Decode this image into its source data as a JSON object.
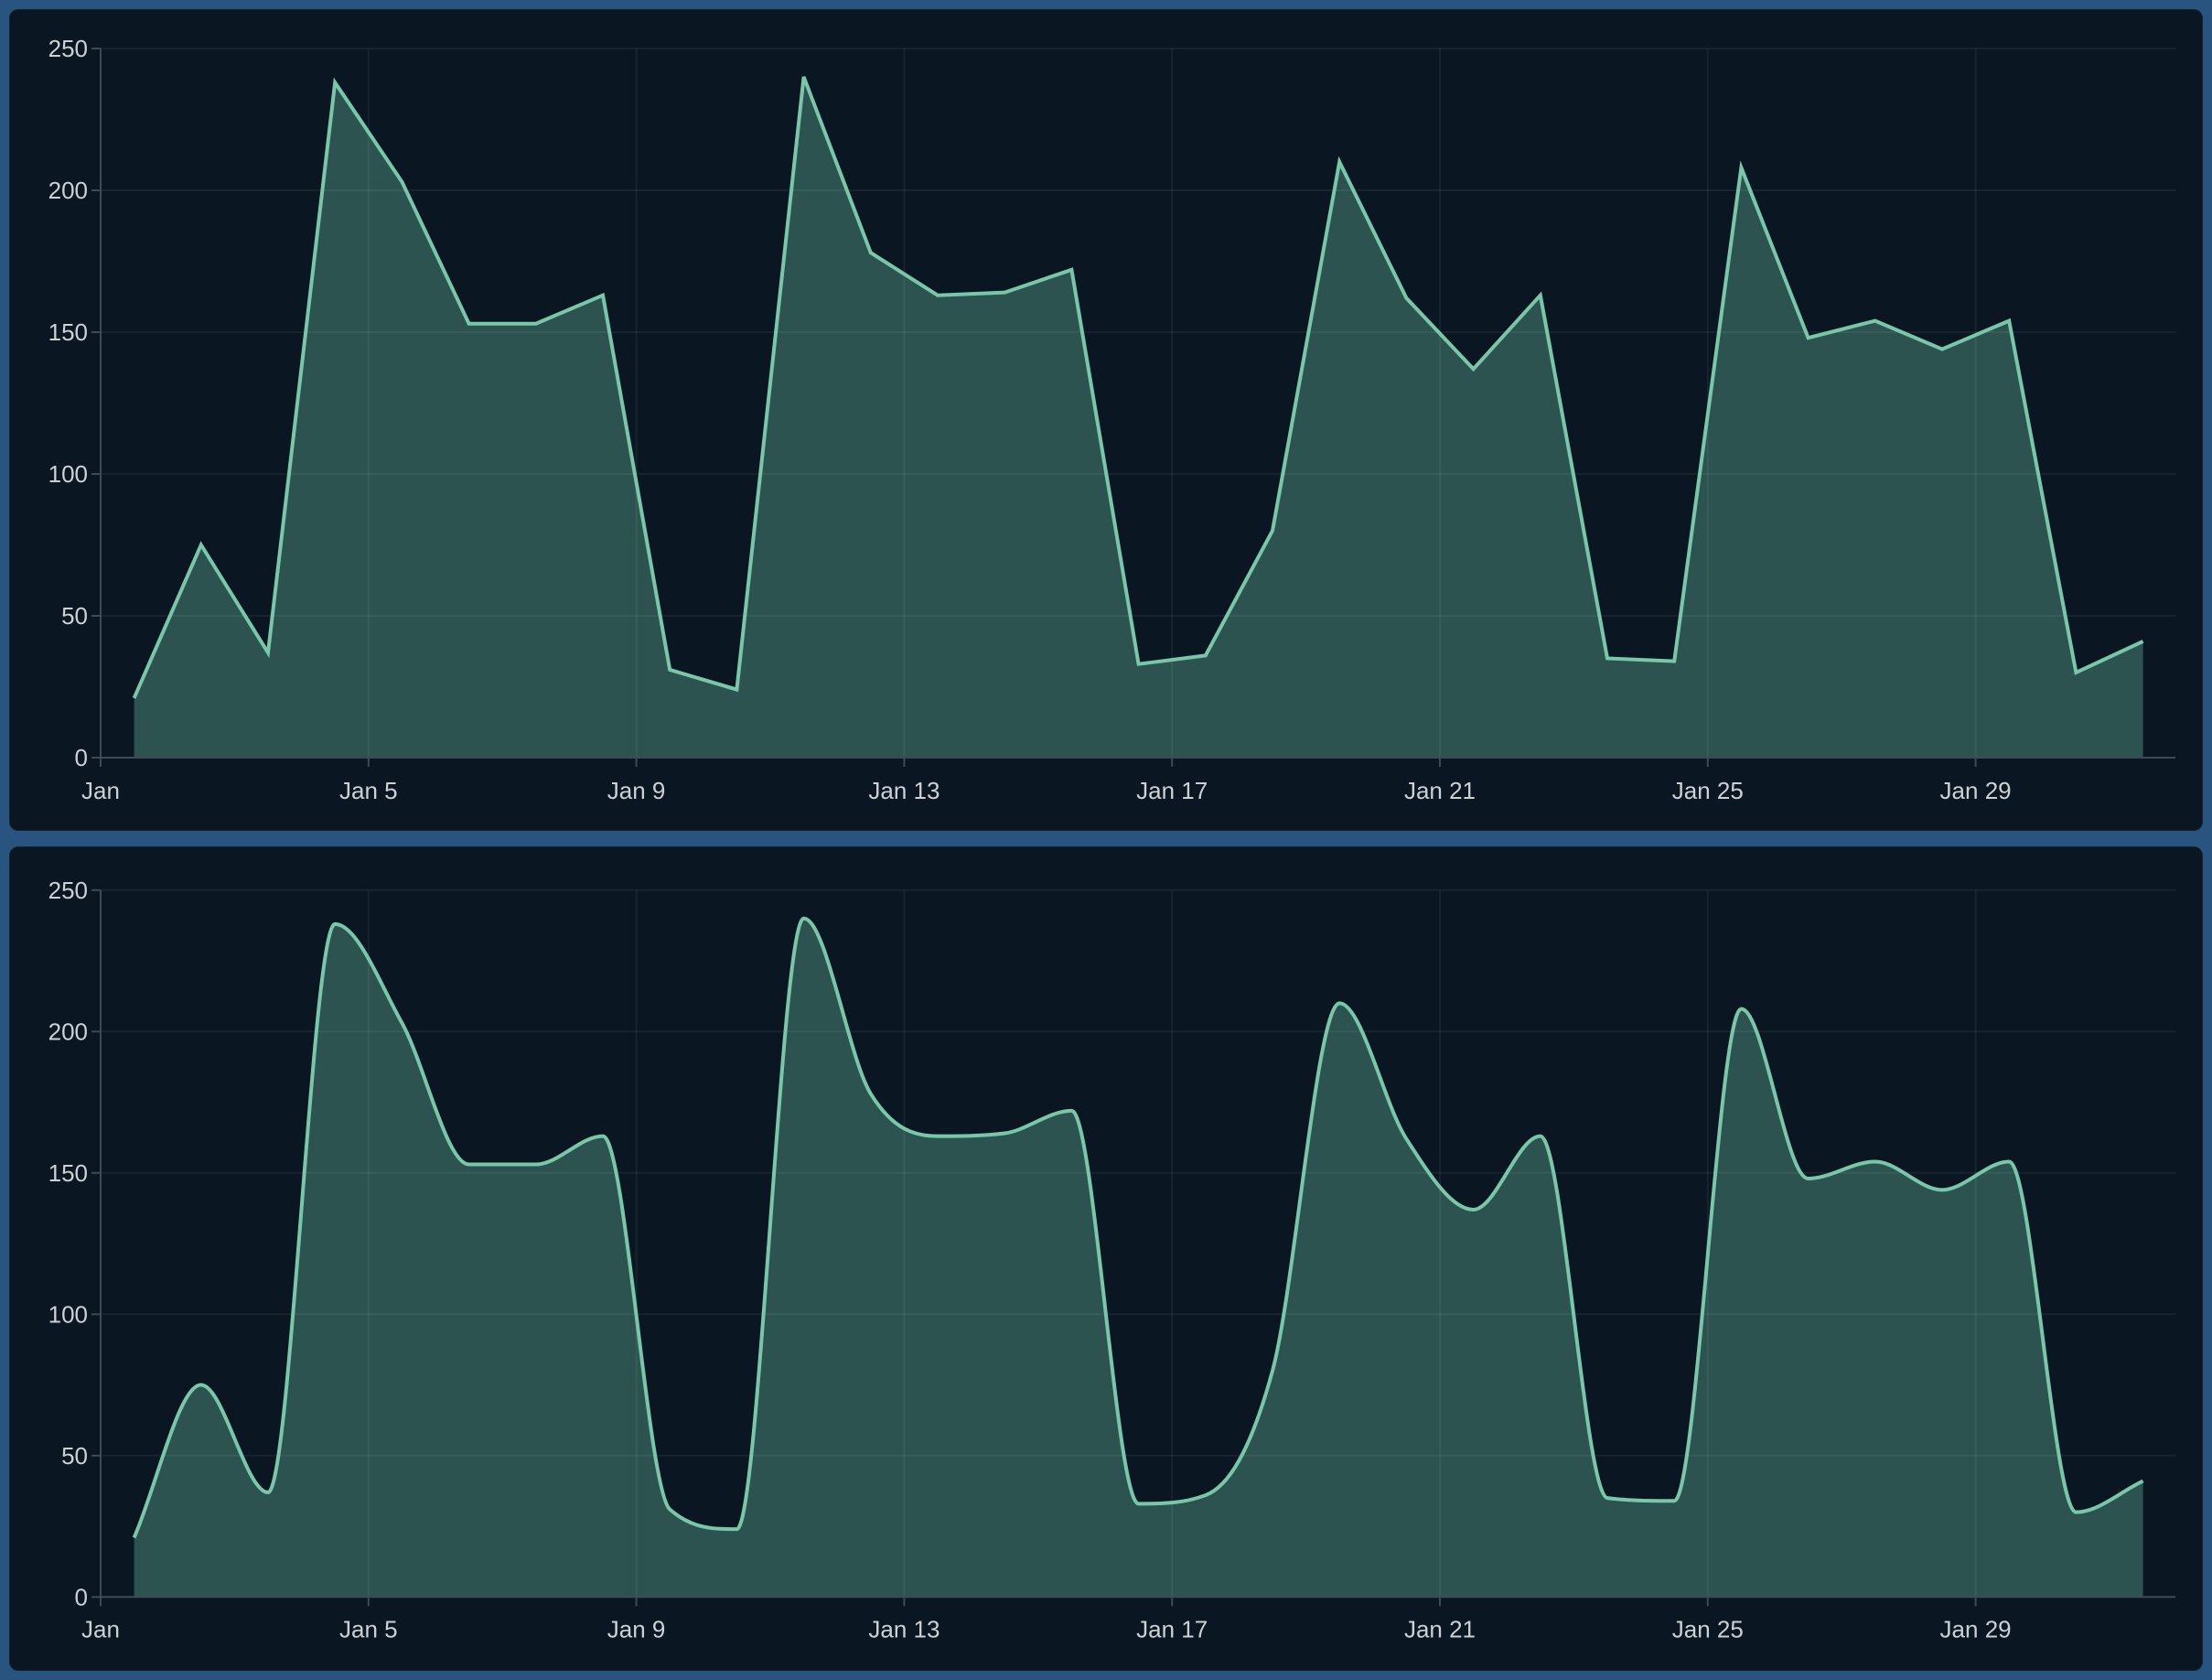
{
  "app": {
    "frame_color": "#295480",
    "panel_color": "#0a1621"
  },
  "chart_style": {
    "line_color": "#79c7aa",
    "fill_color": "#2c534f",
    "grid_color": "rgba(255,255,255,0.06)",
    "axis_color": "#3f4a56",
    "label_color": "#ccd1d6",
    "label_font_size": 26
  },
  "chart_data": [
    {
      "type": "area",
      "curve": "linear",
      "title": "",
      "xlabel": "",
      "ylabel": "",
      "x_unit": "day of January",
      "x": [
        1,
        2,
        3,
        4,
        5,
        6,
        7,
        8,
        9,
        10,
        11,
        12,
        13,
        14,
        15,
        16,
        17,
        18,
        19,
        20,
        21,
        22,
        23,
        24,
        25,
        26,
        27,
        28,
        29,
        30,
        31
      ],
      "values": [
        21,
        75,
        37,
        238,
        203,
        153,
        153,
        163,
        31,
        24,
        240,
        178,
        163,
        164,
        172,
        33,
        36,
        80,
        210,
        162,
        137,
        163,
        35,
        34,
        208,
        148,
        154,
        144,
        154,
        30,
        41
      ],
      "x_tick_days": [
        1,
        5,
        9,
        13,
        17,
        21,
        25,
        29
      ],
      "x_tick_labels": [
        "Jan",
        "Jan 5",
        "Jan 9",
        "Jan 13",
        "Jan 17",
        "Jan 21",
        "Jan 25",
        "Jan 29"
      ],
      "y_ticks": [
        0,
        50,
        100,
        150,
        200,
        250
      ],
      "ylim": [
        0,
        250
      ],
      "grid": true,
      "legend_position": "none"
    },
    {
      "type": "area",
      "curve": "monotone",
      "title": "",
      "xlabel": "",
      "ylabel": "",
      "x_unit": "day of January",
      "x": [
        1,
        2,
        3,
        4,
        5,
        6,
        7,
        8,
        9,
        10,
        11,
        12,
        13,
        14,
        15,
        16,
        17,
        18,
        19,
        20,
        21,
        22,
        23,
        24,
        25,
        26,
        27,
        28,
        29,
        30,
        31
      ],
      "values": [
        21,
        75,
        37,
        238,
        203,
        153,
        153,
        163,
        31,
        24,
        240,
        178,
        163,
        164,
        172,
        33,
        36,
        80,
        210,
        162,
        137,
        163,
        35,
        34,
        208,
        148,
        154,
        144,
        154,
        30,
        41
      ],
      "x_tick_days": [
        1,
        5,
        9,
        13,
        17,
        21,
        25,
        29
      ],
      "x_tick_labels": [
        "Jan",
        "Jan 5",
        "Jan 9",
        "Jan 13",
        "Jan 17",
        "Jan 21",
        "Jan 25",
        "Jan 29"
      ],
      "y_ticks": [
        0,
        50,
        100,
        150,
        200,
        250
      ],
      "ylim": [
        0,
        250
      ],
      "grid": true,
      "legend_position": "none"
    }
  ]
}
